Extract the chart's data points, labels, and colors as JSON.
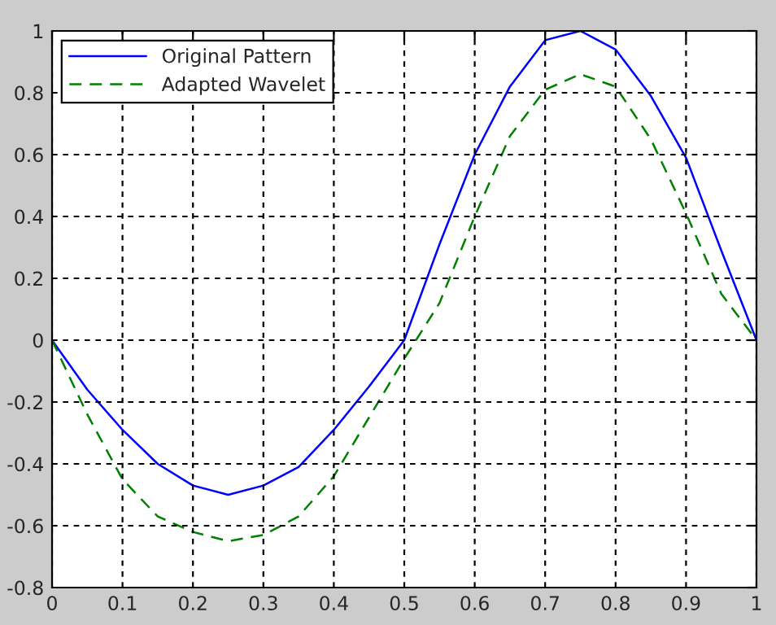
{
  "chart_data": {
    "type": "line",
    "x": [
      0,
      0.05,
      0.1,
      0.15,
      0.2,
      0.25,
      0.3,
      0.35,
      0.4,
      0.45,
      0.5,
      0.55,
      0.6,
      0.65,
      0.7,
      0.75,
      0.8,
      0.85,
      0.9,
      0.95,
      1
    ],
    "series": [
      {
        "name": "Original Pattern",
        "color": "#0000ff",
        "line_style": "solid",
        "values": [
          0,
          -0.16,
          -0.29,
          -0.4,
          -0.47,
          -0.5,
          -0.47,
          -0.41,
          -0.29,
          -0.15,
          0,
          0.31,
          0.6,
          0.82,
          0.97,
          1.0,
          0.94,
          0.79,
          0.59,
          0.29,
          0
        ]
      },
      {
        "name": "Adapted Wavelet",
        "color": "#008000",
        "line_style": "dashed",
        "values": [
          0,
          -0.24,
          -0.45,
          -0.57,
          -0.62,
          -0.65,
          -0.63,
          -0.57,
          -0.44,
          -0.25,
          -0.06,
          0.12,
          0.4,
          0.66,
          0.81,
          0.86,
          0.82,
          0.65,
          0.41,
          0.15,
          0
        ]
      }
    ],
    "xlim": [
      0,
      1
    ],
    "xticks": [
      0,
      0.1,
      0.2,
      0.3,
      0.4,
      0.5,
      0.6,
      0.7,
      0.8,
      0.9,
      1
    ],
    "ylim": [
      -0.8,
      1
    ],
    "yticks": [
      -0.8,
      -0.6,
      -0.4,
      -0.2,
      0,
      0.2,
      0.4,
      0.6,
      0.8,
      1
    ],
    "grid": true,
    "legend": "top left",
    "marker": "none"
  }
}
